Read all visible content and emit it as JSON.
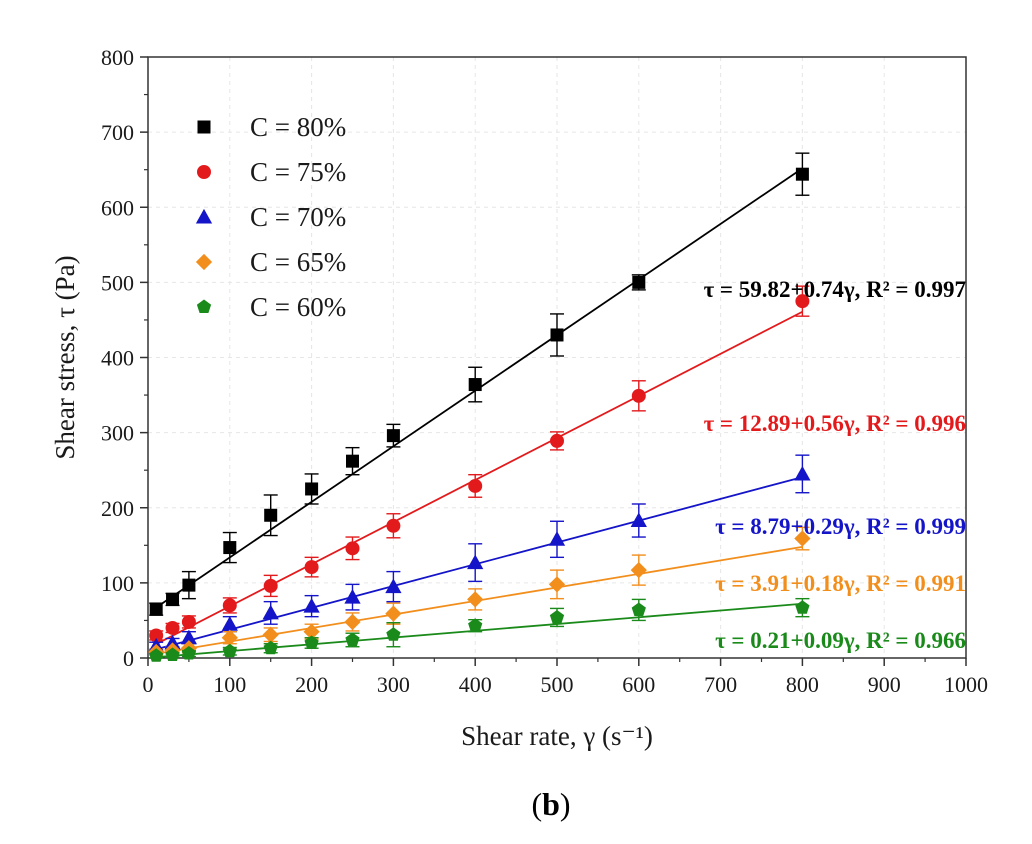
{
  "chart_data": {
    "type": "scatter",
    "xlabel": "Shear rate, γ (s⁻¹)",
    "ylabel": "Shear stress, τ (Pa)",
    "xlim": [
      0,
      1000
    ],
    "ylim": [
      0,
      800
    ],
    "xticks": [
      0,
      100,
      200,
      300,
      400,
      500,
      600,
      700,
      800,
      900,
      1000
    ],
    "yticks": [
      0,
      100,
      200,
      300,
      400,
      500,
      600,
      700,
      800
    ],
    "x": [
      10,
      30,
      50,
      100,
      150,
      200,
      250,
      300,
      400,
      500,
      600,
      800
    ],
    "legend_position": "top-left",
    "panel_label": "b",
    "series": [
      {
        "name": "C = 80%",
        "color": "#000000",
        "marker": "square",
        "values": [
          65,
          78,
          97,
          147,
          190,
          225,
          262,
          296,
          364,
          430,
          500,
          644
        ],
        "errors": [
          8,
          8,
          18,
          20,
          27,
          20,
          18,
          15,
          23,
          28,
          10,
          28
        ],
        "fit": {
          "intercept": 59.82,
          "slope": 0.74,
          "label": "τ = 59.82+0.74γ, R² = 0.997"
        }
      },
      {
        "name": "C = 75%",
        "color": "#e31a1c",
        "marker": "circle",
        "values": [
          30,
          40,
          48,
          70,
          96,
          121,
          146,
          176,
          229,
          289,
          349,
          475
        ],
        "errors": [
          6,
          6,
          8,
          10,
          14,
          13,
          15,
          16,
          15,
          12,
          20,
          20
        ],
        "fit": {
          "intercept": 12.89,
          "slope": 0.56,
          "label": "τ = 12.89+0.56γ, R² = 0.996"
        }
      },
      {
        "name": "C = 70%",
        "color": "#1414c8",
        "marker": "triangle",
        "values": [
          16,
          20,
          27,
          45,
          60,
          69,
          81,
          95,
          127,
          158,
          183,
          245
        ],
        "errors": [
          5,
          6,
          8,
          10,
          15,
          14,
          17,
          20,
          25,
          24,
          22,
          25
        ],
        "fit": {
          "intercept": 8.79,
          "slope": 0.29,
          "label": "τ = 8.79+0.29γ, R² = 0.999"
        }
      },
      {
        "name": "C = 65%",
        "color": "#f28e1c",
        "marker": "diamond",
        "values": [
          8,
          10,
          13,
          27,
          31,
          35,
          48,
          59,
          78,
          98,
          117,
          159
        ],
        "errors": [
          4,
          5,
          6,
          8,
          9,
          10,
          12,
          14,
          14,
          19,
          20,
          15
        ],
        "fit": {
          "intercept": 3.91,
          "slope": 0.18,
          "label": "τ = 3.91+0.18γ, R² = 0.991"
        }
      },
      {
        "name": "C = 60%",
        "color": "#1a8a1a",
        "marker": "pentagon",
        "values": [
          3,
          4,
          6,
          9,
          13,
          20,
          24,
          31,
          43,
          54,
          64,
          67
        ],
        "errors": [
          3,
          3,
          4,
          5,
          6,
          7,
          9,
          16,
          8,
          12,
          14,
          12
        ],
        "fit": {
          "intercept": 0.21,
          "slope": 0.09,
          "label": "τ = 0.21+0.09γ, R² = 0.966"
        }
      }
    ]
  }
}
